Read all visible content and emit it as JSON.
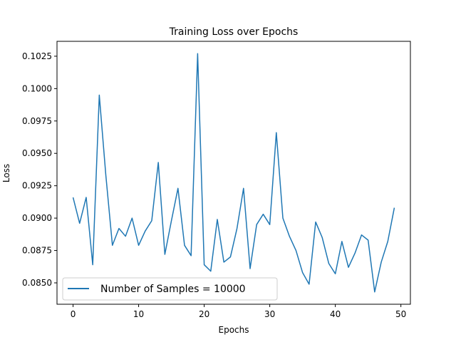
{
  "chart_data": {
    "type": "line",
    "title": "Training Loss over Epochs",
    "xlabel": "Epochs",
    "ylabel": "Loss",
    "xlim": [
      -2.45,
      51.45
    ],
    "ylim": [
      0.08335,
      0.10365
    ],
    "xticks": [
      0,
      10,
      20,
      30,
      40,
      50
    ],
    "xtick_labels": [
      "0",
      "10",
      "20",
      "30",
      "40",
      "50"
    ],
    "yticks": [
      0.085,
      0.0875,
      0.09,
      0.0925,
      0.095,
      0.0975,
      0.1,
      0.1025
    ],
    "ytick_labels": [
      "0.0850",
      "0.0875",
      "0.0900",
      "0.0925",
      "0.0950",
      "0.0975",
      "0.1000",
      "0.1025"
    ],
    "grid": false,
    "legend_position": "bottom-left",
    "series": [
      {
        "name": "Number of Samples = 10000",
        "color": "#1f77b4",
        "x": [
          0,
          1,
          2,
          3,
          4,
          5,
          6,
          7,
          8,
          9,
          10,
          11,
          12,
          13,
          14,
          15,
          16,
          17,
          18,
          19,
          20,
          21,
          22,
          23,
          24,
          25,
          26,
          27,
          28,
          29,
          30,
          31,
          32,
          33,
          34,
          35,
          36,
          37,
          38,
          39,
          40,
          41,
          42,
          43,
          44,
          45,
          46,
          47,
          48,
          49
        ],
        "y": [
          0.0916,
          0.0896,
          0.0916,
          0.0864,
          0.0995,
          0.0933,
          0.0879,
          0.0892,
          0.0886,
          0.09,
          0.0879,
          0.089,
          0.0898,
          0.0943,
          0.0872,
          0.0898,
          0.0923,
          0.0879,
          0.0871,
          0.1027,
          0.0864,
          0.0859,
          0.0899,
          0.0866,
          0.087,
          0.0892,
          0.0923,
          0.0861,
          0.0895,
          0.0903,
          0.0895,
          0.0966,
          0.09,
          0.0886,
          0.0875,
          0.0858,
          0.0849,
          0.0897,
          0.0885,
          0.0865,
          0.0857,
          0.0882,
          0.0862,
          0.0873,
          0.0887,
          0.0883,
          0.0843,
          0.0866,
          0.0882,
          0.0908
        ]
      }
    ]
  }
}
